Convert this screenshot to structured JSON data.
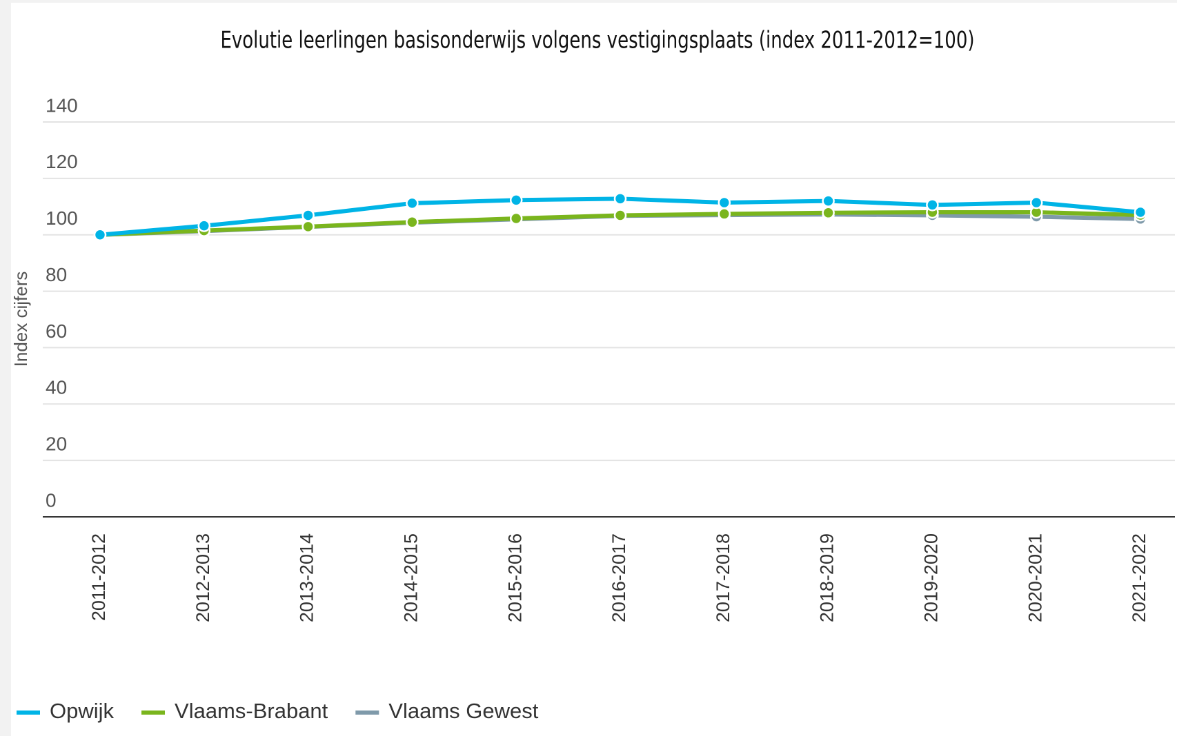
{
  "chart_data": {
    "type": "line",
    "title": "Evolutie leerlingen basisonderwijs volgens vestigingsplaats (index 2011-2012=100)",
    "y_label": "Index cijfers",
    "categories": [
      "2011-2012",
      "2012-2013",
      "2013-2014",
      "2014-2015",
      "2015-2016",
      "2016-2017",
      "2017-2018",
      "2018-2019",
      "2019-2020",
      "2020-2021",
      "2021-2022"
    ],
    "series": [
      {
        "name": "Opwijk",
        "color": "#00b4e6",
        "values": [
          100,
          103.2,
          106.9,
          111.2,
          112.3,
          112.8,
          111.4,
          112,
          110.6,
          111.4,
          108
        ]
      },
      {
        "name": "Vlaams-Brabant",
        "color": "#7ab51d",
        "values": [
          100,
          101.5,
          102.9,
          104.5,
          105.8,
          106.9,
          107.4,
          107.8,
          108,
          108,
          107
        ]
      },
      {
        "name": "Vlaams Gewest",
        "color": "#7f9aaa",
        "values": [
          100,
          101.3,
          102.8,
          104.3,
          105.5,
          106.7,
          107,
          107.2,
          106.9,
          106.4,
          105.6
        ]
      }
    ],
    "ylim": [
      0,
      140
    ],
    "yticks": [
      0,
      20,
      40,
      60,
      80,
      100,
      120,
      140
    ],
    "grid": true,
    "legend": "bottom-left"
  }
}
